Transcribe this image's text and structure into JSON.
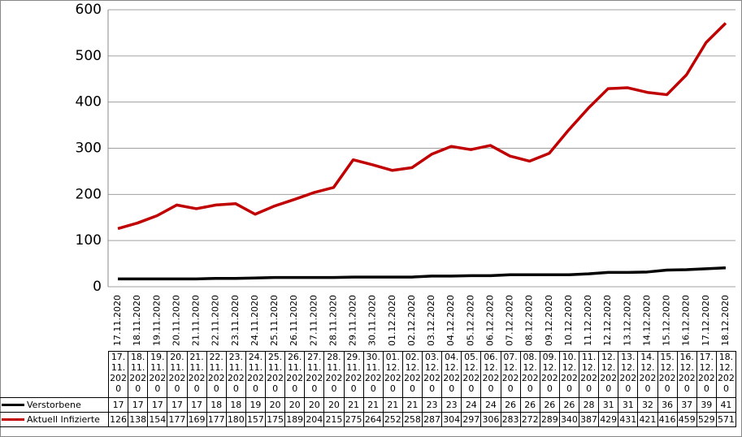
{
  "chart_data": {
    "type": "line",
    "categories": [
      "17.11.2020",
      "18.11.2020",
      "19.11.2020",
      "20.11.2020",
      "21.11.2020",
      "22.11.2020",
      "23.11.2020",
      "24.11.2020",
      "25.11.2020",
      "26.11.2020",
      "27.11.2020",
      "28.11.2020",
      "29.11.2020",
      "30.11.2020",
      "01.12.2020",
      "02.12.2020",
      "03.12.2020",
      "04.12.2020",
      "05.12.2020",
      "06.12.2020",
      "07.12.2020",
      "08.12.2020",
      "09.12.2020",
      "10.12.2020",
      "11.12.2020",
      "12.12.2020",
      "13.12.2020",
      "14.12.2020",
      "15.12.2020",
      "16.12.2020",
      "17.12.2020",
      "18.12.2020"
    ],
    "series": [
      {
        "name": "Verstorbene",
        "color": "#000000",
        "values": [
          17,
          17,
          17,
          17,
          17,
          18,
          18,
          19,
          20,
          20,
          20,
          20,
          21,
          21,
          21,
          21,
          23,
          23,
          24,
          24,
          26,
          26,
          26,
          26,
          28,
          31,
          31,
          32,
          36,
          37,
          39,
          41
        ]
      },
      {
        "name": "Aktuell Infizierte",
        "color": "#c00000",
        "values": [
          126,
          138,
          154,
          177,
          169,
          177,
          180,
          157,
          175,
          189,
          204,
          215,
          275,
          264,
          252,
          258,
          287,
          304,
          297,
          306,
          283,
          272,
          289,
          340,
          387,
          429,
          431,
          421,
          416,
          459,
          529,
          571
        ]
      }
    ],
    "ylim": [
      0,
      600
    ],
    "yticks": [
      0,
      100,
      200,
      300,
      400,
      500,
      600
    ],
    "grid": true
  }
}
